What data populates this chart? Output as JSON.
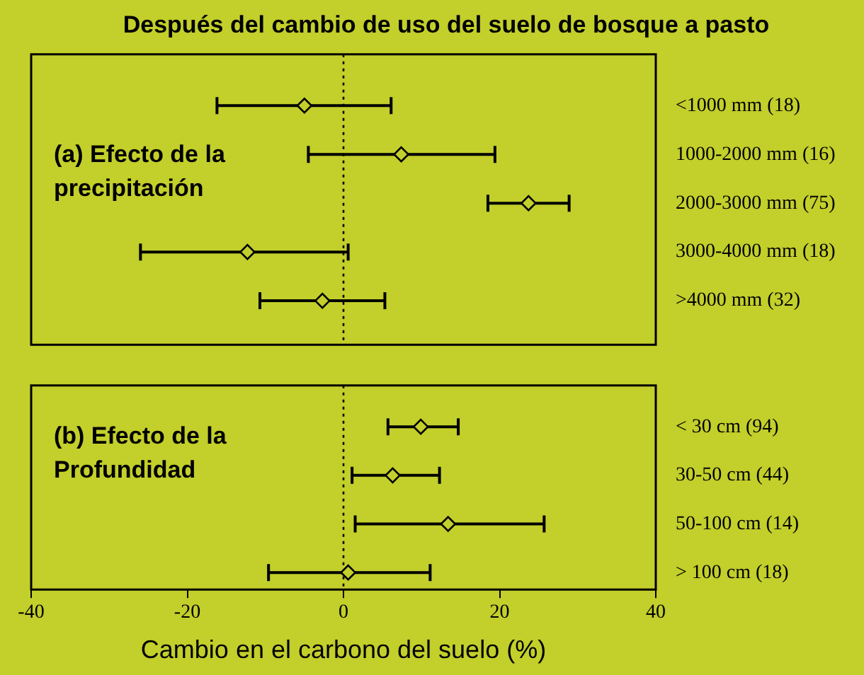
{
  "chart_data": [
    {
      "type": "scatter",
      "orientation": "horizontal",
      "title": "Después del cambio de uso del suelo de bosque a pasto",
      "categories": [
        "<1000 mm (18)",
        "1000-2000 mm (16)",
        "2000-3000 mm (75)",
        "3000-4000 mm (18)",
        ">4000 mm (32)"
      ],
      "values": [
        -5.0,
        7.4,
        23.7,
        -12.3,
        -2.7
      ],
      "errors": [
        [
          -16.2,
          6.1
        ],
        [
          -4.5,
          19.4
        ],
        [
          18.5,
          28.9
        ],
        [
          -26.0,
          0.6
        ],
        [
          -10.7,
          5.3
        ]
      ],
      "color": "#000000",
      "marker": "diamond",
      "xlim": [
        -40,
        40
      ],
      "xticks": [
        -40,
        -20,
        0,
        20,
        40
      ],
      "tick_labels": "y",
      "grid": false,
      "legend": false,
      "ref_lines": [
        {
          "axis": "x",
          "value": 0,
          "line_style": "dotted",
          "color": "#000000"
        }
      ],
      "annotations": [
        "(a) Efecto de la precipitación"
      ]
    },
    {
      "type": "scatter",
      "orientation": "horizontal",
      "xlabel": "Cambio en el carbono del suelo (%)",
      "categories": [
        "< 30 cm (94)",
        "30-50 cm (44)",
        "50-100 cm (14)",
        "> 100 cm (18)"
      ],
      "values": [
        9.9,
        6.3,
        13.4,
        0.6
      ],
      "errors": [
        [
          5.7,
          14.7
        ],
        [
          1.1,
          12.3
        ],
        [
          1.5,
          25.7
        ],
        [
          -9.6,
          11.1
        ]
      ],
      "color": "#000000",
      "marker": "diamond",
      "xlim": [
        -40,
        40
      ],
      "xticks": [
        -40,
        -20,
        0,
        20,
        40
      ],
      "grid": false,
      "legend": false,
      "ref_lines": [
        {
          "axis": "x",
          "value": 0,
          "line_style": "dotted",
          "color": "#000000"
        }
      ],
      "annotations": [
        "(b) Efecto de la Profundidad"
      ]
    }
  ]
}
